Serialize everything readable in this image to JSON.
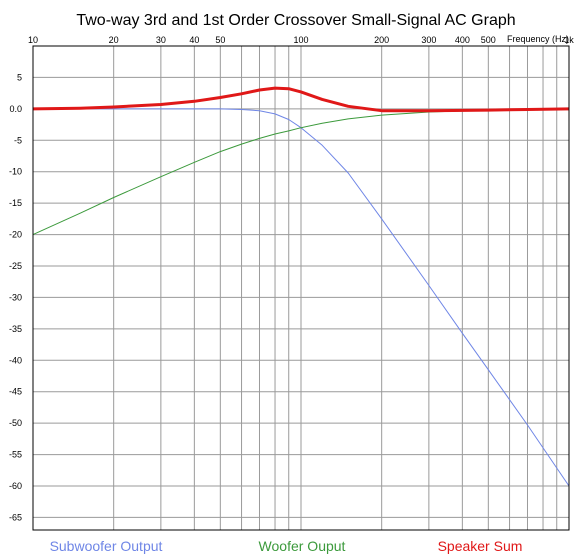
{
  "chart_data": {
    "type": "line",
    "title": "Two-way 3rd and 1st Order Crossover Small-Signal AC Graph",
    "xlabel": "Frequency  (Hz)",
    "ylabel": "",
    "x_scale": "log",
    "xlim": [
      10,
      1000
    ],
    "ylim": [
      -67,
      10
    ],
    "grid": true,
    "x_tick_labels": [
      {
        "value": 10,
        "label": "10"
      },
      {
        "value": 20,
        "label": "20"
      },
      {
        "value": 30,
        "label": "30"
      },
      {
        "value": 40,
        "label": "40"
      },
      {
        "value": 50,
        "label": "50"
      },
      {
        "value": 100,
        "label": "100"
      },
      {
        "value": 200,
        "label": "200"
      },
      {
        "value": 300,
        "label": "300"
      },
      {
        "value": 400,
        "label": "400"
      },
      {
        "value": 500,
        "label": "500"
      },
      {
        "value": 1000,
        "label": "1k"
      }
    ],
    "y_tick_labels": [
      {
        "value": 5,
        "label": "5"
      },
      {
        "value": 0,
        "label": "0.0"
      },
      {
        "value": -5,
        "label": "-5"
      },
      {
        "value": -10,
        "label": "-10"
      },
      {
        "value": -15,
        "label": "-15"
      },
      {
        "value": -20,
        "label": "-20"
      },
      {
        "value": -25,
        "label": "-25"
      },
      {
        "value": -30,
        "label": "-30"
      },
      {
        "value": -35,
        "label": "-35"
      },
      {
        "value": -40,
        "label": "-40"
      },
      {
        "value": -45,
        "label": "-45"
      },
      {
        "value": -50,
        "label": "-50"
      },
      {
        "value": -55,
        "label": "-55"
      },
      {
        "value": -60,
        "label": "-60"
      },
      {
        "value": -65,
        "label": "-65"
      }
    ],
    "legend_position": "bottom",
    "series": [
      {
        "name": "Subwoofer Output",
        "color": "#6f86e6",
        "x": [
          10,
          20,
          30,
          40,
          50,
          60,
          70,
          80,
          90,
          100,
          120,
          150,
          200,
          300,
          400,
          500,
          700,
          1000
        ],
        "y": [
          0,
          0,
          0,
          0,
          0,
          -0.1,
          -0.3,
          -0.8,
          -1.7,
          -3,
          -5.8,
          -10.2,
          -17.5,
          -28.1,
          -35.7,
          -41.5,
          -50.3,
          -60
        ]
      },
      {
        "name": "Woofer Ouput",
        "color": "#3c9a3c",
        "x": [
          10,
          15,
          20,
          30,
          40,
          50,
          60,
          70,
          80,
          90,
          100,
          120,
          150,
          200,
          300,
          500,
          700,
          1000
        ],
        "y": [
          -20,
          -16.6,
          -14.1,
          -10.8,
          -8.5,
          -6.8,
          -5.6,
          -4.7,
          -4,
          -3.5,
          -3,
          -2.3,
          -1.6,
          -1,
          -0.5,
          -0.2,
          -0.1,
          0
        ]
      },
      {
        "name": "Speaker Sum",
        "color": "#e01818",
        "x": [
          10,
          15,
          20,
          30,
          40,
          50,
          60,
          70,
          80,
          90,
          100,
          120,
          150,
          200,
          300,
          500,
          700,
          1000
        ],
        "y": [
          0,
          0.1,
          0.3,
          0.7,
          1.2,
          1.8,
          2.4,
          3.0,
          3.3,
          3.2,
          2.7,
          1.5,
          0.4,
          -0.3,
          -0.3,
          -0.2,
          -0.1,
          0
        ]
      }
    ]
  }
}
